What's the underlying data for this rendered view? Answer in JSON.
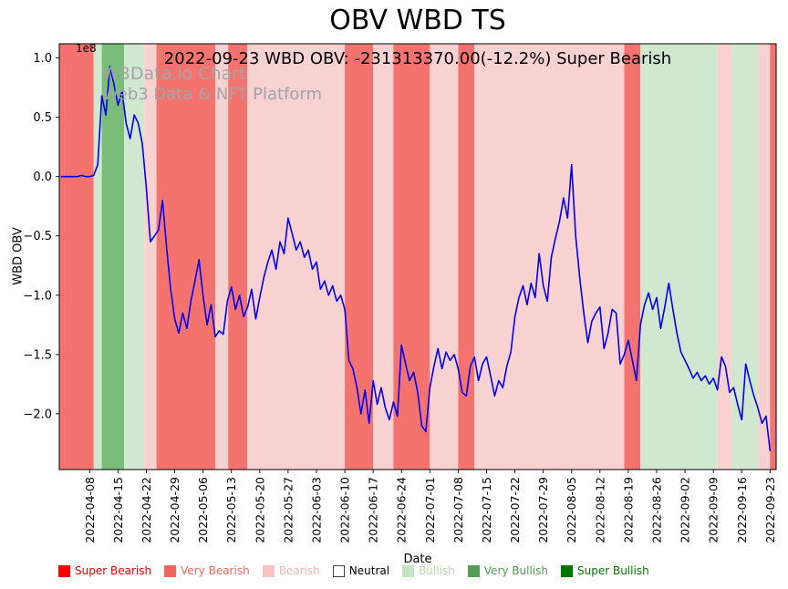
{
  "title": "OBV WBD TS",
  "subtitle": "2022-09-23 WBD OBV: -231313370.00(-12.2%) Super Bearish",
  "watermark": {
    "line1": "W3Data.io Chart",
    "line2": "Web3 Data & NFT Platform"
  },
  "axes": {
    "y_label": "WBD OBV",
    "x_label": "Date",
    "offset_label": "1e8"
  },
  "colors": {
    "line": "#0000ee",
    "super_bearish": "#ee3333",
    "very_bearish": "#f4736f",
    "bearish": "#f8d2d0",
    "neutral": "#ffffff",
    "bullish": "#cfe8cf",
    "very_bullish": "#79bd79",
    "super_bullish": "#2f8f2f"
  },
  "legend": {
    "items": [
      {
        "label": "Super Bearish",
        "color": "#ff0000",
        "text_color": "#e00000",
        "border": false
      },
      {
        "label": "Very Bearish",
        "color": "#f4645f",
        "text_color": "#f4645f",
        "border": false
      },
      {
        "label": "Bearish",
        "color": "#f8c3c1",
        "text_color": "#f0b4b2",
        "border": false
      },
      {
        "label": "Neutral",
        "color": "#ffffff",
        "text_color": "#000000",
        "border": true
      },
      {
        "label": "Bullish",
        "color": "#c4e2c4",
        "text_color": "#b2d8b2",
        "border": false
      },
      {
        "label": "Very Bullish",
        "color": "#539e53",
        "text_color": "#4e9a4e",
        "border": false
      },
      {
        "label": "Super Bullish",
        "color": "#007800",
        "text_color": "#007800",
        "border": false
      }
    ]
  },
  "chart_data": {
    "type": "line",
    "title": "OBV WBD TS",
    "xlabel": "Date",
    "ylabel": "WBD OBV",
    "y_unit_multiplier": 100000000,
    "offset_label": "1e8",
    "xlim_days": [
      -7.5,
      169.5
    ],
    "ylim": [
      -2.47,
      1.12
    ],
    "x_tick_interval_days": 7,
    "x_tick_labels": [
      "2022-04-08",
      "2022-04-15",
      "2022-04-22",
      "2022-04-29",
      "2022-05-06",
      "2022-05-13",
      "2022-05-20",
      "2022-05-27",
      "2022-06-03",
      "2022-06-10",
      "2022-06-17",
      "2022-06-24",
      "2022-07-01",
      "2022-07-08",
      "2022-07-15",
      "2022-07-22",
      "2022-07-29",
      "2022-08-05",
      "2022-08-12",
      "2022-08-19",
      "2022-08-26",
      "2022-09-02",
      "2022-09-09",
      "2022-09-16",
      "2022-09-23"
    ],
    "y_ticks": [
      {
        "value": 1.0,
        "label": "1.0"
      },
      {
        "value": 0.5,
        "label": "0.5"
      },
      {
        "value": 0.0,
        "label": "0.0"
      },
      {
        "value": -0.5,
        "label": "−0.5"
      },
      {
        "value": -1.0,
        "label": "−1.0"
      },
      {
        "value": -1.5,
        "label": "−1.5"
      },
      {
        "value": -2.0,
        "label": "−2.0"
      }
    ],
    "series": [
      {
        "name": "WBD OBV",
        "start_day": -7,
        "last_value_1e8": -2.3131337,
        "values": [
          0,
          0,
          0,
          0,
          0,
          0.01,
          0,
          0,
          0.01,
          0.1,
          0.68,
          0.52,
          0.93,
          0.78,
          0.6,
          0.72,
          0.45,
          0.32,
          0.52,
          0.45,
          0.28,
          -0.1,
          -0.55,
          -0.5,
          -0.45,
          -0.2,
          -0.6,
          -0.95,
          -1.2,
          -1.32,
          -1.15,
          -1.28,
          -1.05,
          -0.88,
          -0.7,
          -1.0,
          -1.25,
          -1.08,
          -1.35,
          -1.3,
          -1.33,
          -1.05,
          -0.93,
          -1.12,
          -1.0,
          -1.18,
          -1.1,
          -0.95,
          -1.2,
          -1.02,
          -0.85,
          -0.72,
          -0.62,
          -0.78,
          -0.55,
          -0.65,
          -0.35,
          -0.48,
          -0.62,
          -0.55,
          -0.68,
          -0.62,
          -0.78,
          -0.72,
          -0.95,
          -0.88,
          -1.0,
          -0.92,
          -1.05,
          -1.0,
          -1.12,
          -1.55,
          -1.62,
          -1.78,
          -2.0,
          -1.8,
          -2.08,
          -1.72,
          -1.92,
          -1.78,
          -1.95,
          -2.05,
          -1.9,
          -2.02,
          -1.42,
          -1.58,
          -1.72,
          -1.65,
          -1.82,
          -2.1,
          -2.15,
          -1.78,
          -1.6,
          -1.45,
          -1.62,
          -1.48,
          -1.55,
          -1.5,
          -1.62,
          -1.82,
          -1.85,
          -1.6,
          -1.52,
          -1.72,
          -1.58,
          -1.52,
          -1.68,
          -1.85,
          -1.72,
          -1.78,
          -1.6,
          -1.48,
          -1.18,
          -1.02,
          -0.92,
          -1.08,
          -0.9,
          -1.02,
          -0.65,
          -0.92,
          -1.05,
          -0.68,
          -0.52,
          -0.38,
          -0.18,
          -0.35,
          0.1,
          -0.5,
          -0.85,
          -1.15,
          -1.4,
          -1.22,
          -1.15,
          -1.1,
          -1.45,
          -1.32,
          -1.12,
          -1.15,
          -1.58,
          -1.5,
          -1.38,
          -1.55,
          -1.72,
          -1.25,
          -1.08,
          -0.98,
          -1.12,
          -1.02,
          -1.28,
          -1.1,
          -0.9,
          -1.12,
          -1.32,
          -1.48,
          -1.55,
          -1.62,
          -1.7,
          -1.65,
          -1.72,
          -1.68,
          -1.75,
          -1.7,
          -1.8,
          -1.52,
          -1.6,
          -1.82,
          -1.78,
          -1.92,
          -2.05,
          -1.58,
          -1.72,
          -1.85,
          -1.95,
          -2.08,
          -2.02,
          -2.31
        ]
      }
    ],
    "bands": [
      {
        "from": -7.5,
        "to": 1,
        "level": "very_bearish"
      },
      {
        "from": 1,
        "to": 3,
        "level": "bullish"
      },
      {
        "from": 3,
        "to": 8.5,
        "level": "very_bullish"
      },
      {
        "from": 8.5,
        "to": 13.5,
        "level": "bullish"
      },
      {
        "from": 13.5,
        "to": 16.5,
        "level": "bearish"
      },
      {
        "from": 16.5,
        "to": 31,
        "level": "very_bearish"
      },
      {
        "from": 31,
        "to": 34.2,
        "level": "bearish"
      },
      {
        "from": 34.2,
        "to": 38.9,
        "level": "very_bearish"
      },
      {
        "from": 38.9,
        "to": 63,
        "level": "bearish"
      },
      {
        "from": 63,
        "to": 70,
        "level": "very_bearish"
      },
      {
        "from": 70,
        "to": 75,
        "level": "bearish"
      },
      {
        "from": 75,
        "to": 84,
        "level": "very_bearish"
      },
      {
        "from": 84,
        "to": 91,
        "level": "bearish"
      },
      {
        "from": 91,
        "to": 95,
        "level": "very_bearish"
      },
      {
        "from": 95,
        "to": 132,
        "level": "bearish"
      },
      {
        "from": 132,
        "to": 136,
        "level": "very_bearish"
      },
      {
        "from": 136,
        "to": 155,
        "level": "bullish"
      },
      {
        "from": 155,
        "to": 158.5,
        "level": "bearish"
      },
      {
        "from": 158.5,
        "to": 165,
        "level": "bullish"
      },
      {
        "from": 165,
        "to": 168,
        "level": "bearish"
      },
      {
        "from": 168,
        "to": 169.5,
        "level": "very_bearish"
      }
    ]
  }
}
